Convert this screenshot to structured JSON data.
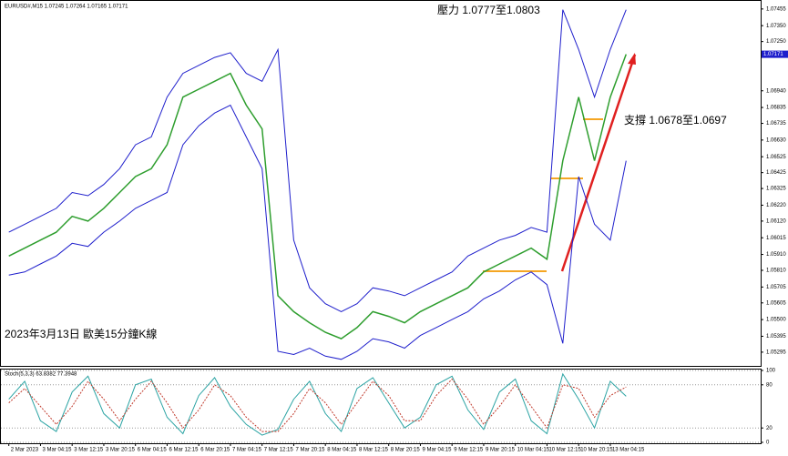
{
  "chart_data": [
    {
      "type": "line",
      "title": "EURUSD#,M15 1.07245 1.07264 1.07165 1.07171",
      "current_price_label": "1.07171",
      "annotations": [
        "壓力 1.0777至1.0803",
        "支撐 1.0678至1.0697",
        "2023年3月13日 歐美15分鐘K線"
      ],
      "categories": [
        "2 Mar 2023",
        null,
        "3 Mar 04:15",
        null,
        "3 Mar 12:15",
        null,
        "3 Mar 20:15",
        null,
        "6 Mar 04:15",
        null,
        "6 Mar 12:15",
        null,
        "6 Mar 20:15",
        null,
        "7 Mar 04:15",
        null,
        "7 Mar 12:15",
        null,
        "7 Mar 20:15",
        null,
        "8 Mar 04:15",
        null,
        "8 Mar 12:15",
        null,
        "8 Mar 20:15",
        null,
        "9 Mar 04:15",
        null,
        "9 Mar 12:15",
        null,
        "9 Mar 20:15",
        null,
        "10 Mar 04:15",
        null,
        "10 Mar 12:15",
        null,
        "10 Mar 20:15",
        null,
        "13 Mar 04:15",
        null,
        null,
        null,
        null,
        null,
        null,
        null,
        null,
        null
      ],
      "series": [
        {
          "color": "#2e9e2e",
          "values": [
            1.059,
            1.0595,
            1.06,
            1.0605,
            1.0615,
            1.0612,
            1.062,
            1.063,
            1.064,
            1.0645,
            1.066,
            1.069,
            1.0695,
            1.07,
            1.0705,
            1.0685,
            1.067,
            1.0565,
            1.0555,
            1.0548,
            1.0542,
            1.0538,
            1.0545,
            1.0555,
            1.0552,
            1.0548,
            1.0555,
            1.056,
            1.0565,
            1.057,
            1.058,
            1.0585,
            1.059,
            1.0595,
            1.0588,
            1.065,
            1.069,
            1.065,
            1.069,
            1.0717,
            null,
            null,
            null,
            null,
            null,
            null,
            null,
            null
          ]
        },
        {
          "color": "#1f1fcc",
          "values": [
            1.0605,
            1.061,
            1.0615,
            1.062,
            1.063,
            1.0628,
            1.0635,
            1.0645,
            1.066,
            1.0665,
            1.069,
            1.0705,
            1.071,
            1.0715,
            1.0718,
            1.0705,
            1.07,
            1.072,
            1.06,
            1.057,
            1.056,
            1.0555,
            1.056,
            1.057,
            1.0568,
            1.0565,
            1.057,
            1.0575,
            1.058,
            1.059,
            1.0595,
            1.06,
            1.0603,
            1.0608,
            1.0605,
            1.0745,
            1.072,
            1.069,
            1.072,
            1.0745,
            null,
            null,
            null,
            null,
            null,
            null,
            null,
            null
          ]
        },
        {
          "color": "#1f1fcc",
          "values": [
            1.0578,
            1.058,
            1.0585,
            1.059,
            1.0598,
            1.0596,
            1.0605,
            1.0612,
            1.062,
            1.0625,
            1.063,
            1.066,
            1.0672,
            1.068,
            1.0685,
            1.0665,
            1.0645,
            1.053,
            1.0528,
            1.0532,
            1.0527,
            1.0525,
            1.053,
            1.0538,
            1.0536,
            1.0532,
            1.054,
            1.0545,
            1.055,
            1.0555,
            1.0563,
            1.0568,
            1.0575,
            1.058,
            1.0572,
            1.0535,
            1.064,
            1.061,
            1.06,
            1.065,
            null,
            null,
            null,
            null,
            null,
            null,
            null,
            null
          ]
        }
      ],
      "ylim": [
        1.0522,
        1.075
      ],
      "yticks": [
        {
          "value": 1.07455,
          "label": "1.07455"
        },
        {
          "value": 1.0735,
          "label": "1.07350"
        },
        {
          "value": 1.0725,
          "label": "1.07250"
        },
        {
          "value": 1.0694,
          "label": "1.06940"
        },
        {
          "value": 1.06835,
          "label": "1.06835"
        },
        {
          "value": 1.06735,
          "label": "1.06735"
        },
        {
          "value": 1.0663,
          "label": "1.06630"
        },
        {
          "value": 1.06525,
          "label": "1.06525"
        },
        {
          "value": 1.06425,
          "label": "1.06425"
        },
        {
          "value": 1.06325,
          "label": "1.06325"
        },
        {
          "value": 1.0622,
          "label": "1.06220"
        },
        {
          "value": 1.0612,
          "label": "1.06120"
        },
        {
          "value": 1.06015,
          "label": "1.06015"
        },
        {
          "value": 1.0591,
          "label": "1.05910"
        },
        {
          "value": 1.0581,
          "label": "1.05810"
        },
        {
          "value": 1.05705,
          "label": "1.05705"
        },
        {
          "value": 1.05605,
          "label": "1.05605"
        },
        {
          "value": 1.055,
          "label": "1.05500"
        },
        {
          "value": 1.05395,
          "label": "1.05395"
        },
        {
          "value": 1.05295,
          "label": "1.05295"
        }
      ]
    },
    {
      "type": "line",
      "title": "Stoch(5,3,3) 63.8382 77.3948",
      "series": [
        {
          "color": "#2aa3a3",
          "style": "solid",
          "values": [
            60,
            85,
            30,
            15,
            70,
            92,
            40,
            20,
            80,
            88,
            35,
            12,
            65,
            90,
            50,
            25,
            10,
            18,
            60,
            85,
            40,
            15,
            75,
            90,
            55,
            20,
            35,
            80,
            92,
            45,
            18,
            70,
            88,
            30,
            12,
            95,
            60,
            20,
            85,
            64,
            null,
            null,
            null,
            null,
            null,
            null,
            null,
            null
          ]
        },
        {
          "color": "#c0392b",
          "style": "dashed",
          "values": [
            55,
            75,
            50,
            25,
            50,
            85,
            60,
            30,
            60,
            85,
            55,
            20,
            45,
            80,
            65,
            35,
            15,
            15,
            40,
            75,
            55,
            25,
            55,
            85,
            65,
            30,
            30,
            65,
            88,
            60,
            25,
            50,
            80,
            50,
            20,
            80,
            75,
            35,
            65,
            77,
            null,
            null,
            null,
            null,
            null,
            null,
            null,
            null
          ]
        }
      ],
      "ylim": [
        0,
        100
      ],
      "yticks": [
        100,
        80,
        20,
        0
      ]
    }
  ]
}
